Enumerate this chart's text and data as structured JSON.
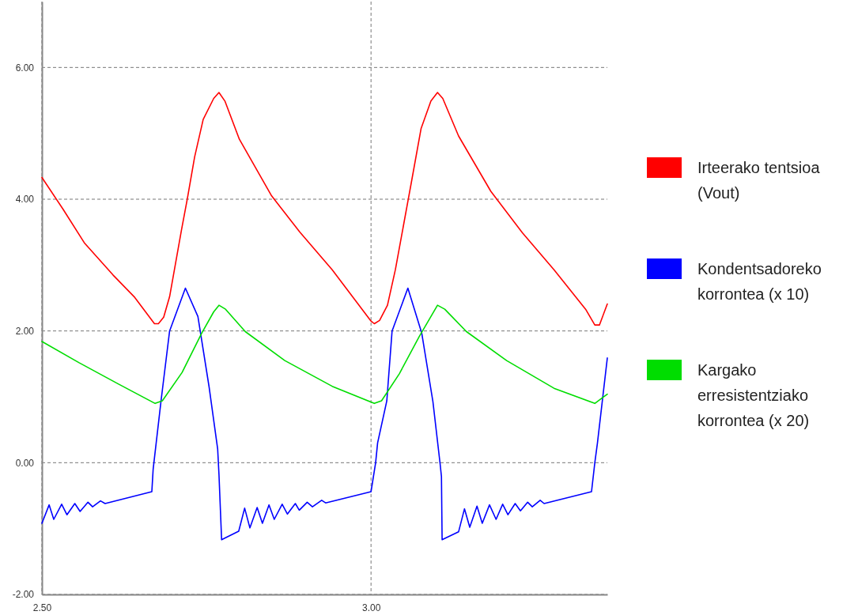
{
  "chart_data": {
    "type": "line",
    "xlim": [
      2.5,
      3.359
    ],
    "ylim": [
      -2,
      7
    ],
    "xticks": [
      {
        "value": 2.5,
        "label": "2.50"
      },
      {
        "value": 3,
        "label": "3.00"
      }
    ],
    "yticks": [
      {
        "value": -2,
        "label": "-2.00"
      },
      {
        "value": 0,
        "label": "0.00"
      },
      {
        "value": 2,
        "label": "2.00"
      },
      {
        "value": 4,
        "label": "4.00"
      },
      {
        "value": 6,
        "label": "6.00"
      }
    ],
    "grid": true,
    "legend": "right",
    "line_style": "solid",
    "marker": "none",
    "series": [
      {
        "name": "Irteerako tentsioa (Vout)",
        "color": "#ff0000",
        "x": [
          2.5,
          2.532,
          2.565,
          2.608,
          2.641,
          2.671,
          2.677,
          2.685,
          2.694,
          2.712,
          2.721,
          2.732,
          2.745,
          2.761,
          2.769,
          2.778,
          2.8,
          2.849,
          2.892,
          2.941,
          3.0,
          3.005,
          3.013,
          3.025,
          3.037,
          3.05,
          3.061,
          3.076,
          3.091,
          3.101,
          3.109,
          3.133,
          3.182,
          3.23,
          3.278,
          3.326,
          3.34,
          3.347,
          3.359
        ],
        "values": [
          4.33,
          3.85,
          3.33,
          2.85,
          2.51,
          2.11,
          2.11,
          2.21,
          2.52,
          3.53,
          4.01,
          4.64,
          5.21,
          5.53,
          5.62,
          5.49,
          4.91,
          4.05,
          3.5,
          2.93,
          2.15,
          2.11,
          2.16,
          2.39,
          2.93,
          3.64,
          4.24,
          5.07,
          5.49,
          5.62,
          5.53,
          4.96,
          4.12,
          3.49,
          2.93,
          2.33,
          2.09,
          2.09,
          2.41
        ]
      },
      {
        "name": "Kondentsadoreko korrontea (x 10)",
        "color": "#0000ff",
        "x": [
          2.5,
          2.511,
          2.518,
          2.53,
          2.538,
          2.55,
          2.558,
          2.57,
          2.577,
          2.589,
          2.596,
          2.667,
          2.669,
          2.681,
          2.694,
          2.718,
          2.737,
          2.754,
          2.767,
          2.769,
          2.773,
          2.799,
          2.808,
          2.816,
          2.827,
          2.835,
          2.845,
          2.853,
          2.865,
          2.873,
          2.885,
          2.891,
          2.903,
          2.911,
          2.925,
          2.931,
          3.0,
          3.007,
          3.01,
          3.024,
          3.032,
          3.056,
          3.077,
          3.094,
          3.105,
          3.107,
          3.108,
          3.133,
          3.142,
          3.15,
          3.161,
          3.169,
          3.18,
          3.19,
          3.2,
          3.208,
          3.219,
          3.227,
          3.238,
          3.245,
          3.257,
          3.263,
          3.335,
          3.34,
          3.344,
          3.359
        ],
        "values": [
          -0.92,
          -0.64,
          -0.86,
          -0.63,
          -0.79,
          -0.62,
          -0.74,
          -0.6,
          -0.67,
          -0.58,
          -0.62,
          -0.44,
          -0.1,
          0.94,
          2.0,
          2.65,
          2.22,
          1.15,
          0.21,
          -0.18,
          -1.17,
          -1.04,
          -0.69,
          -0.99,
          -0.68,
          -0.92,
          -0.64,
          -0.86,
          -0.63,
          -0.78,
          -0.62,
          -0.72,
          -0.6,
          -0.67,
          -0.57,
          -0.61,
          -0.44,
          0.0,
          0.3,
          0.94,
          2.0,
          2.65,
          1.97,
          0.93,
          -0.02,
          -0.21,
          -1.17,
          -1.05,
          -0.7,
          -0.98,
          -0.66,
          -0.92,
          -0.64,
          -0.86,
          -0.63,
          -0.79,
          -0.62,
          -0.73,
          -0.6,
          -0.67,
          -0.57,
          -0.62,
          -0.44,
          0.0,
          0.3,
          1.59
        ]
      },
      {
        "name": "Kargako erresistentziako korrontea (x 20)",
        "color": "#00dd00",
        "x": [
          2.5,
          2.556,
          2.617,
          2.672,
          2.683,
          2.713,
          2.743,
          2.761,
          2.769,
          2.779,
          2.809,
          2.869,
          2.941,
          3.005,
          3.016,
          3.043,
          3.073,
          3.101,
          3.112,
          3.145,
          3.206,
          3.278,
          3.34,
          3.359
        ],
        "values": [
          1.84,
          1.52,
          1.19,
          0.9,
          0.94,
          1.37,
          1.97,
          2.29,
          2.39,
          2.33,
          1.99,
          1.55,
          1.16,
          0.9,
          0.94,
          1.35,
          1.91,
          2.39,
          2.33,
          1.99,
          1.55,
          1.13,
          0.9,
          1.04
        ]
      }
    ]
  }
}
